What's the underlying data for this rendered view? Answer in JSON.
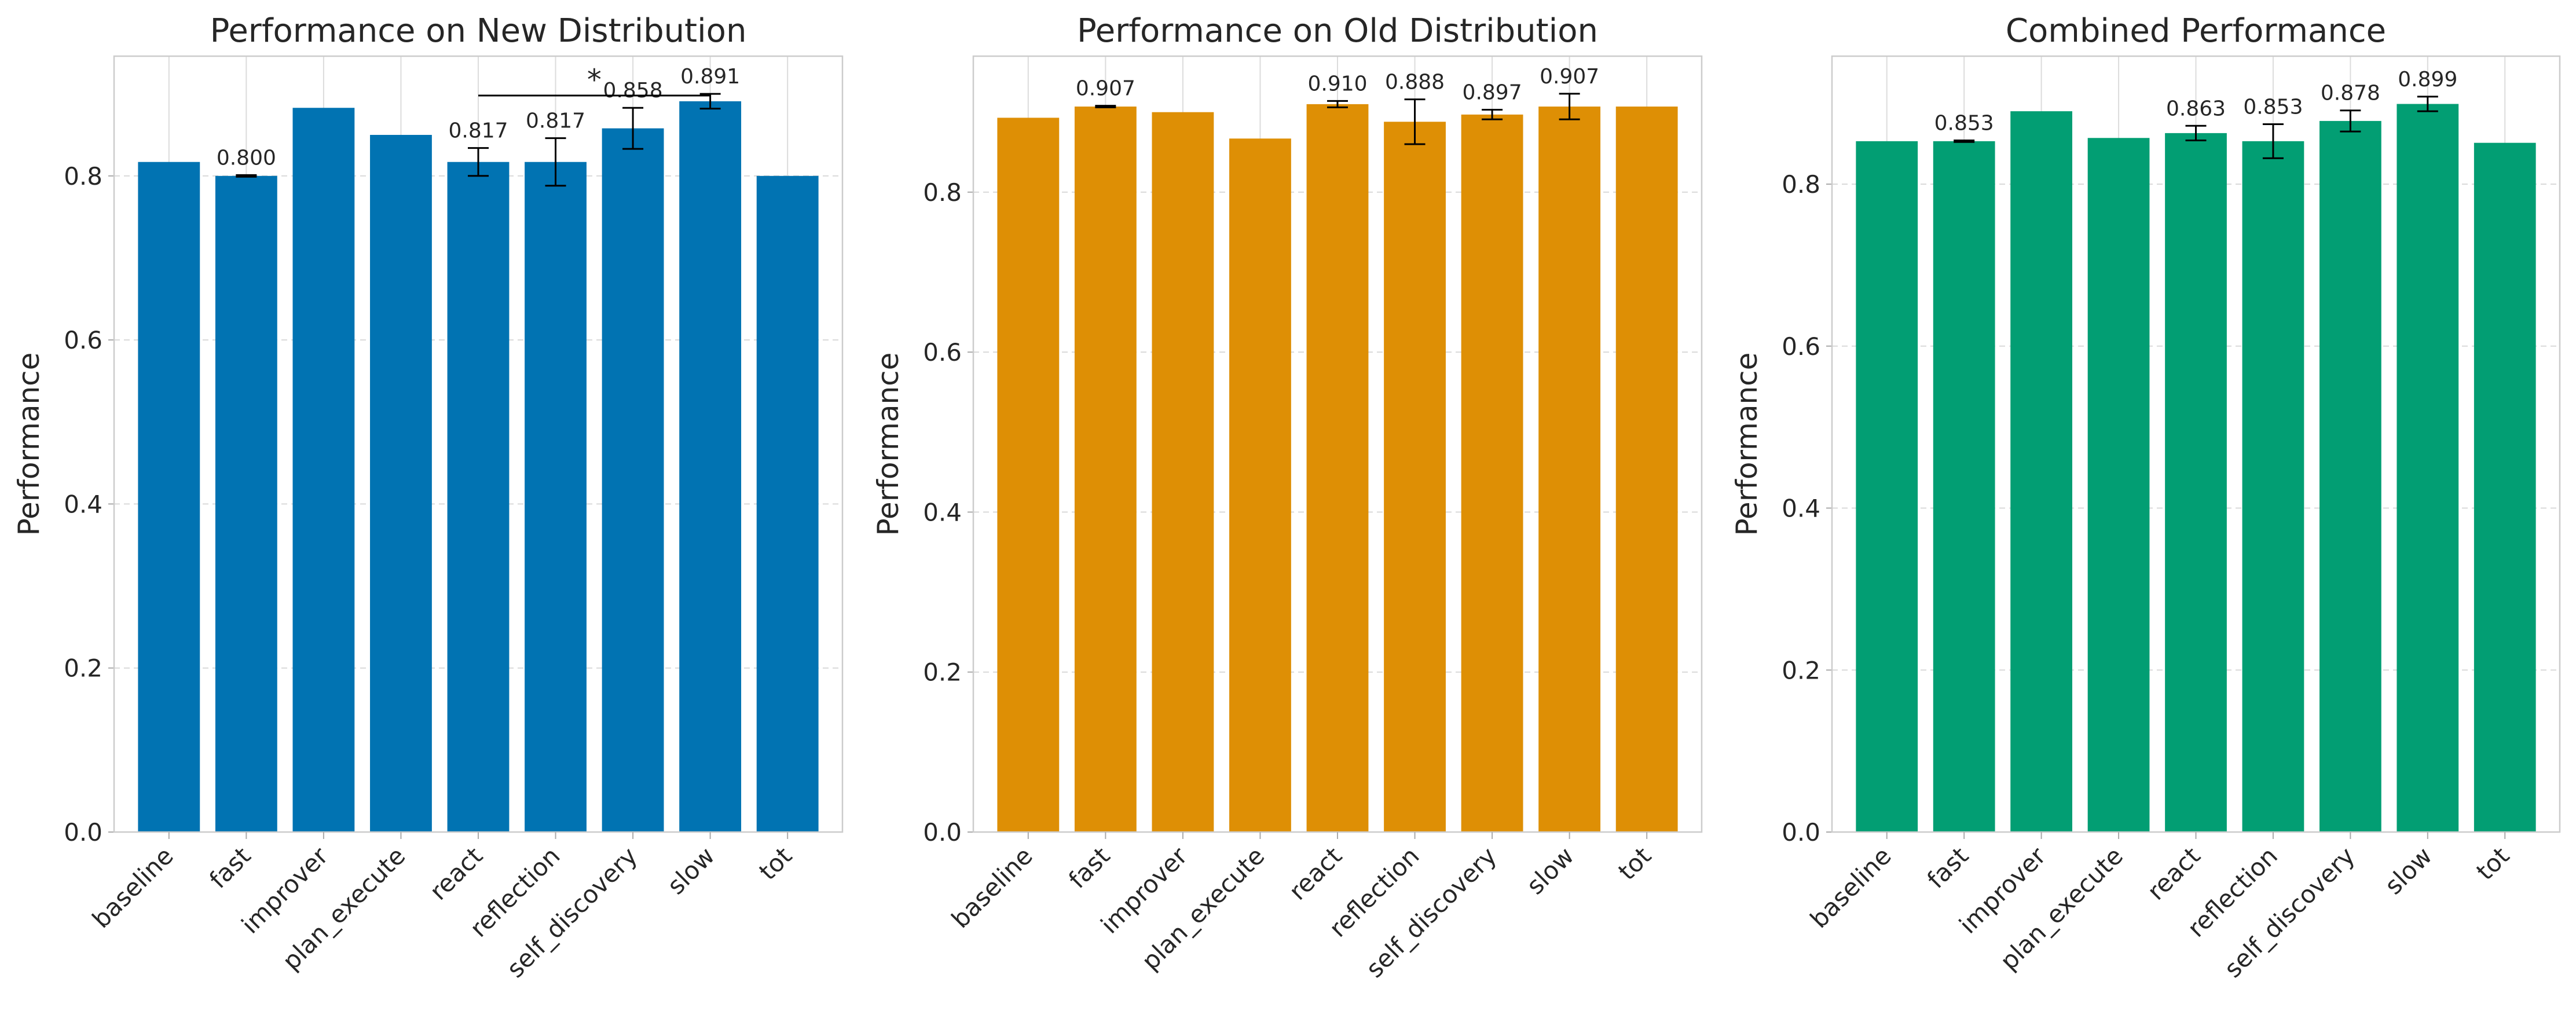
{
  "chart_data": [
    {
      "type": "bar",
      "title": "Performance on New Distribution",
      "xlabel": "",
      "ylabel": "Performance",
      "ylim": [
        0,
        0.946
      ],
      "yticks": [
        "0.0",
        "0.2",
        "0.4",
        "0.6",
        "0.8"
      ],
      "grid": true,
      "color": "#0173b2",
      "categories": [
        "baseline",
        "fast",
        "improver",
        "plan_execute",
        "react",
        "reflection",
        "self_discovery",
        "slow",
        "tot"
      ],
      "values": [
        0.817,
        0.8,
        0.883,
        0.85,
        0.817,
        0.817,
        0.858,
        0.891,
        0.8
      ],
      "errors": [
        null,
        0.001,
        null,
        null,
        0.017,
        0.029,
        0.025,
        0.009,
        null
      ],
      "value_labels": [
        "",
        "0.800",
        "",
        "",
        "0.817",
        "0.817",
        "0.858",
        "0.891",
        ""
      ],
      "significance": {
        "from": "react",
        "to": "slow",
        "y": 0.898,
        "label": "*"
      }
    },
    {
      "type": "bar",
      "title": "Performance on Old Distribution",
      "xlabel": "",
      "ylabel": "Performance",
      "ylim": [
        0,
        0.97
      ],
      "yticks": [
        "0.0",
        "0.2",
        "0.4",
        "0.6",
        "0.8"
      ],
      "grid": true,
      "color": "#de8f05",
      "categories": [
        "baseline",
        "fast",
        "improver",
        "plan_execute",
        "react",
        "reflection",
        "self_discovery",
        "slow",
        "tot"
      ],
      "values": [
        0.893,
        0.907,
        0.9,
        0.867,
        0.91,
        0.888,
        0.897,
        0.907,
        0.907
      ],
      "errors": [
        null,
        0.001,
        null,
        null,
        0.004,
        0.028,
        0.006,
        0.016,
        null
      ],
      "value_labels": [
        "",
        "0.907",
        "",
        "",
        "0.910",
        "0.888",
        "0.897",
        "0.907",
        ""
      ]
    },
    {
      "type": "bar",
      "title": "Combined Performance",
      "xlabel": "",
      "ylabel": "Performance",
      "ylim": [
        0,
        0.958
      ],
      "yticks": [
        "0.0",
        "0.2",
        "0.4",
        "0.6",
        "0.8"
      ],
      "grid": true,
      "color": "#029e73",
      "categories": [
        "baseline",
        "fast",
        "improver",
        "plan_execute",
        "react",
        "reflection",
        "self_discovery",
        "slow",
        "tot"
      ],
      "values": [
        0.853,
        0.853,
        0.89,
        0.857,
        0.863,
        0.853,
        0.878,
        0.899,
        0.851
      ],
      "errors": [
        null,
        0.001,
        null,
        null,
        0.009,
        0.021,
        0.013,
        0.009,
        null
      ],
      "value_labels": [
        "",
        "0.853",
        "",
        "",
        "0.863",
        "0.853",
        "0.878",
        "0.899",
        ""
      ]
    }
  ]
}
